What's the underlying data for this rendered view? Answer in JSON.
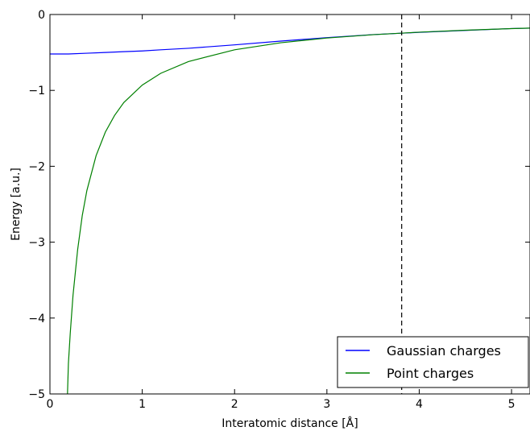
{
  "chart_data": {
    "type": "line",
    "xlabel": "Interatomic distance [Å]",
    "ylabel": "Energy [a.u.]",
    "xlim": [
      0,
      5.2
    ],
    "ylim": [
      -5,
      0
    ],
    "xticks": [
      0,
      1,
      2,
      3,
      4,
      5
    ],
    "xtick_labels": [
      "0",
      "1",
      "2",
      "3",
      "4",
      "5"
    ],
    "yticks": [
      0,
      -1,
      -2,
      -3,
      -4,
      -5
    ],
    "ytick_labels": [
      "0",
      "−1",
      "−2",
      "−3",
      "−4",
      "−5"
    ],
    "grid": false,
    "legend_position": "bottom-right",
    "vline": {
      "x": 3.81,
      "style": "dashed",
      "color": "#000000"
    },
    "series": [
      {
        "name": "Gaussian charges",
        "color": "#0000ff",
        "x": [
          0,
          0.2,
          0.4,
          0.6,
          0.8,
          1.0,
          1.2,
          1.5,
          2.0,
          2.5,
          3.0,
          3.5,
          4.0,
          4.5,
          5.0,
          5.2
        ],
        "y": [
          -0.52,
          -0.52,
          -0.51,
          -0.5,
          -0.49,
          -0.48,
          -0.465,
          -0.445,
          -0.4,
          -0.35,
          -0.305,
          -0.265,
          -0.235,
          -0.21,
          -0.185,
          -0.18
        ]
      },
      {
        "name": "Point charges",
        "color": "#008000",
        "x": [
          0.19,
          0.2,
          0.22,
          0.25,
          0.3,
          0.35,
          0.4,
          0.5,
          0.6,
          0.7,
          0.8,
          1.0,
          1.2,
          1.5,
          2.0,
          2.5,
          3.0,
          3.5,
          4.0,
          4.5,
          5.0,
          5.2
        ],
        "y": [
          -5.0,
          -4.6,
          -4.2,
          -3.7,
          -3.1,
          -2.65,
          -2.32,
          -1.86,
          -1.55,
          -1.33,
          -1.16,
          -0.93,
          -0.775,
          -0.62,
          -0.465,
          -0.372,
          -0.31,
          -0.266,
          -0.233,
          -0.207,
          -0.186,
          -0.179
        ]
      }
    ]
  }
}
